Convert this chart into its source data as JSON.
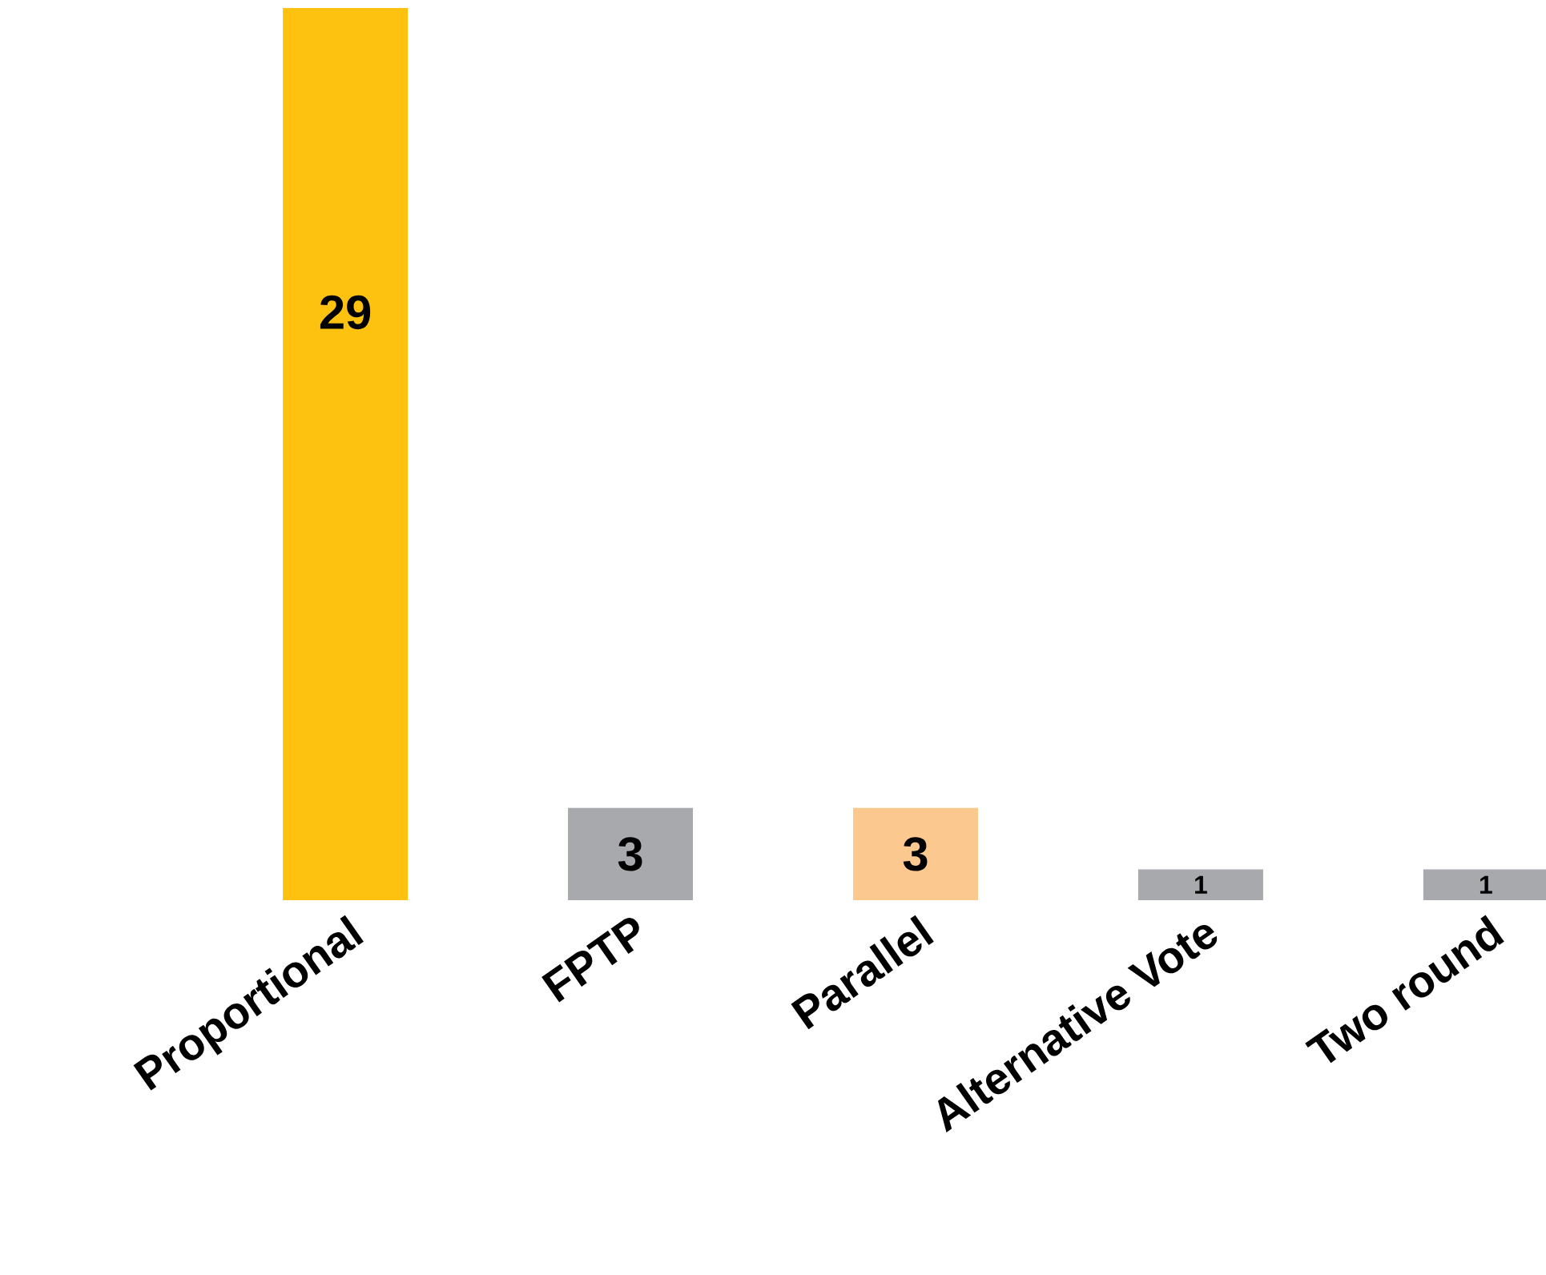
{
  "chart_data": {
    "type": "bar",
    "data_labels": true,
    "categories": [
      "Proportional",
      "FPTP",
      "Parallel",
      "Alternative Vote",
      "Two round"
    ],
    "values": [
      29,
      3,
      3,
      1,
      1
    ],
    "colors": [
      "#fcc20f",
      "#a7a9ac",
      "#fbc98f",
      "#a7a9ac",
      "#a7a9ac"
    ]
  }
}
